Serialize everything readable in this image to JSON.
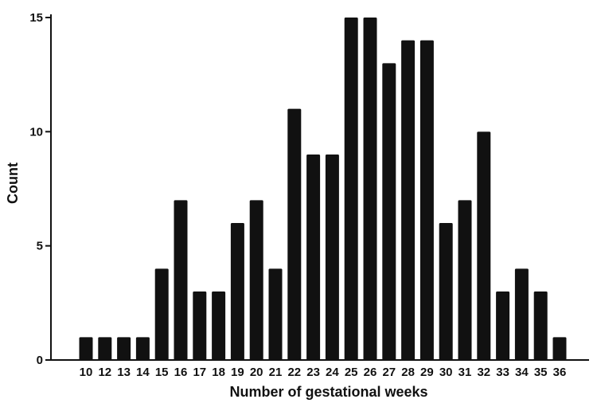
{
  "chart_data": {
    "type": "bar",
    "title": "",
    "xlabel": "Number of gestational weeks",
    "ylabel": "Count",
    "ylim": [
      0,
      15
    ],
    "yticks": [
      0,
      5,
      10,
      15
    ],
    "grid": false,
    "legend": "none",
    "bar_color": "#111111",
    "categories": [
      "10",
      "12",
      "13",
      "14",
      "15",
      "16",
      "17",
      "18",
      "19",
      "20",
      "21",
      "22",
      "23",
      "24",
      "25",
      "26",
      "27",
      "28",
      "29",
      "30",
      "31",
      "32",
      "33",
      "34",
      "35",
      "36"
    ],
    "values": [
      1,
      1,
      1,
      1,
      4,
      7,
      3,
      3,
      6,
      7,
      4,
      11,
      9,
      9,
      15,
      15,
      13,
      14,
      14,
      6,
      7,
      10,
      3,
      4,
      3,
      1
    ]
  }
}
